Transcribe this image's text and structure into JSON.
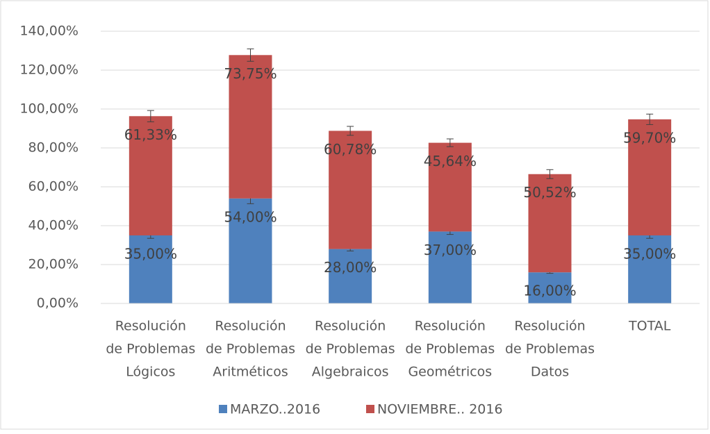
{
  "chart_data": {
    "type": "stacked_bar",
    "categories": [
      [
        "Resolución",
        "de Problemas",
        "Lógicos"
      ],
      [
        "Resolución",
        "de Problemas",
        "Aritméticos"
      ],
      [
        "Resolución",
        "de Problemas",
        "Algebraicos"
      ],
      [
        "Resolución",
        "de Problemas",
        "Geométricos"
      ],
      [
        "Resolución",
        "de Problemas",
        "Datos"
      ],
      [
        "TOTAL"
      ]
    ],
    "series": [
      {
        "name": "MARZO..2016",
        "color": "#4f81bd",
        "values": [
          35,
          54,
          28,
          37,
          16,
          35
        ],
        "value_labels": [
          "35,00%",
          "54,00%",
          "28,00%",
          "37,00%",
          "16,00%",
          "35,00%"
        ],
        "errors": [
          1.5,
          2.7,
          1,
          1.5,
          0.5,
          1.5
        ]
      },
      {
        "name": "NOVIEMBRE.. 2016",
        "color": "#c0504d",
        "values": [
          61.33,
          73.75,
          60.78,
          45.64,
          50.52,
          59.7
        ],
        "value_labels": [
          "61,33%",
          "73,75%",
          "60,78%",
          "45,64%",
          "50,52%",
          "59,70%"
        ],
        "errors": [
          2.9,
          3.2,
          2.3,
          2,
          2.3,
          2.7
        ]
      }
    ],
    "ylim": [
      0,
      140
    ],
    "yticks": [
      {
        "value": 0,
        "label": "0,00%"
      },
      {
        "value": 20,
        "label": "20,00%"
      },
      {
        "value": 40,
        "label": "40,00%"
      },
      {
        "value": 60,
        "label": "60,00%"
      },
      {
        "value": 80,
        "label": "80,00%"
      },
      {
        "value": 100,
        "label": "100,00%"
      },
      {
        "value": 120,
        "label": "120,00%"
      },
      {
        "value": 140,
        "label": "140,00%"
      }
    ],
    "grid": true,
    "legend": "bottom"
  }
}
